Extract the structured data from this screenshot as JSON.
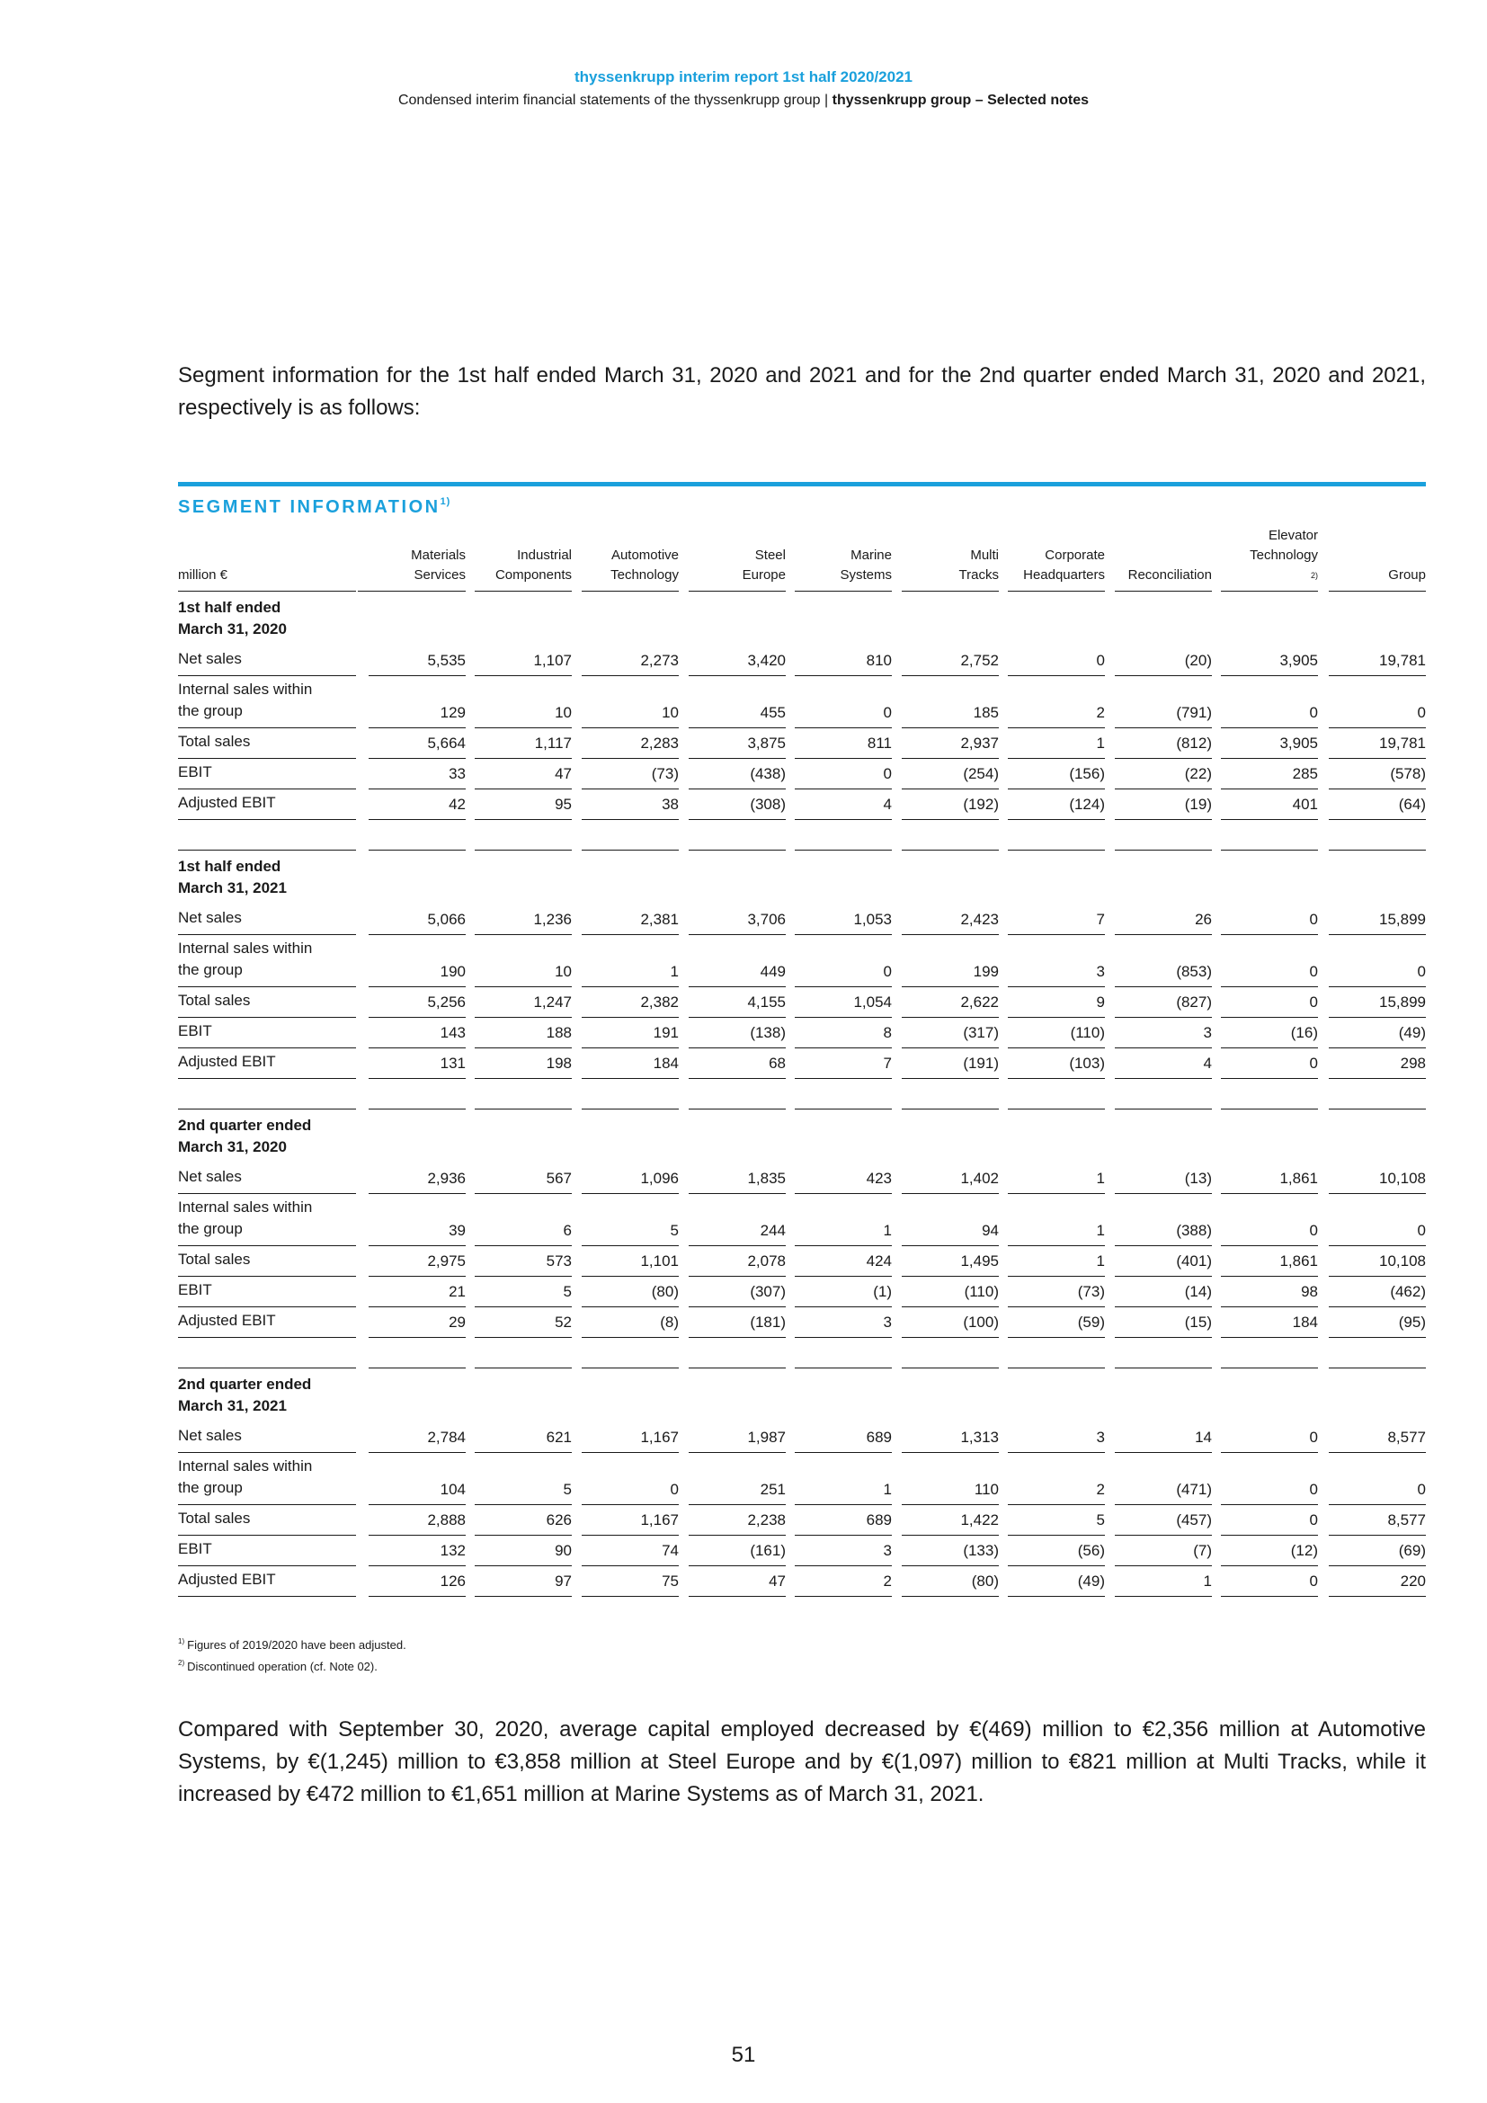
{
  "header": {
    "title": "thyssenkrupp interim report 1st half 2020/2021",
    "subtitle_plain": "Condensed interim financial statements of the thyssenkrupp group | ",
    "subtitle_bold": "thyssenkrupp group – Selected notes"
  },
  "intro_text": "Segment information for the 1st half ended March 31, 2020 and 2021 and for the 2nd quarter ended March 31, 2020 and 2021, respectively is as follows:",
  "table_title": "SEGMENT INFORMATION",
  "table_title_sup": "1)",
  "unit_label": "million €",
  "columns": [
    {
      "line1": "Materials",
      "line2": "Services",
      "sup": ""
    },
    {
      "line1": "Industrial",
      "line2": "Components",
      "sup": ""
    },
    {
      "line1": "Automotive",
      "line2": "Technology",
      "sup": ""
    },
    {
      "line1": "Steel",
      "line2": "Europe",
      "sup": ""
    },
    {
      "line1": "Marine",
      "line2": "Systems",
      "sup": ""
    },
    {
      "line1": "Multi",
      "line2": "Tracks",
      "sup": ""
    },
    {
      "line1": "Corporate",
      "line2": "Headquarters",
      "sup": ""
    },
    {
      "line1": "",
      "line2": "Reconciliation",
      "sup": ""
    },
    {
      "line1": "Elevator",
      "line2": "Technology",
      "sup": "2)"
    },
    {
      "line1": "",
      "line2": "Group",
      "sup": ""
    }
  ],
  "sections": [
    {
      "title_line1": "1st half ended",
      "title_line2": "March 31, 2020",
      "rows": [
        {
          "label1": "Net sales",
          "label2": "",
          "values": [
            "5,535",
            "1,107",
            "2,273",
            "3,420",
            "810",
            "2,752",
            "0",
            "(20)",
            "3,905",
            "19,781"
          ]
        },
        {
          "label1": "Internal sales within",
          "label2": "the group",
          "values": [
            "129",
            "10",
            "10",
            "455",
            "0",
            "185",
            "2",
            "(791)",
            "0",
            "0"
          ]
        },
        {
          "label1": "Total sales",
          "label2": "",
          "values": [
            "5,664",
            "1,117",
            "2,283",
            "3,875",
            "811",
            "2,937",
            "1",
            "(812)",
            "3,905",
            "19,781"
          ]
        },
        {
          "label1": "EBIT",
          "label2": "",
          "values": [
            "33",
            "47",
            "(73)",
            "(438)",
            "0",
            "(254)",
            "(156)",
            "(22)",
            "285",
            "(578)"
          ]
        },
        {
          "label1": "Adjusted EBIT",
          "label2": "",
          "values": [
            "42",
            "95",
            "38",
            "(308)",
            "4",
            "(192)",
            "(124)",
            "(19)",
            "401",
            "(64)"
          ]
        }
      ]
    },
    {
      "title_line1": "1st half ended",
      "title_line2": "March 31, 2021",
      "rows": [
        {
          "label1": "Net sales",
          "label2": "",
          "values": [
            "5,066",
            "1,236",
            "2,381",
            "3,706",
            "1,053",
            "2,423",
            "7",
            "26",
            "0",
            "15,899"
          ]
        },
        {
          "label1": "Internal sales within",
          "label2": "the group",
          "values": [
            "190",
            "10",
            "1",
            "449",
            "0",
            "199",
            "3",
            "(853)",
            "0",
            "0"
          ]
        },
        {
          "label1": "Total sales",
          "label2": "",
          "values": [
            "5,256",
            "1,247",
            "2,382",
            "4,155",
            "1,054",
            "2,622",
            "9",
            "(827)",
            "0",
            "15,899"
          ]
        },
        {
          "label1": "EBIT",
          "label2": "",
          "values": [
            "143",
            "188",
            "191",
            "(138)",
            "8",
            "(317)",
            "(110)",
            "3",
            "(16)",
            "(49)"
          ]
        },
        {
          "label1": "Adjusted EBIT",
          "label2": "",
          "values": [
            "131",
            "198",
            "184",
            "68",
            "7",
            "(191)",
            "(103)",
            "4",
            "0",
            "298"
          ]
        }
      ]
    },
    {
      "title_line1": "2nd quarter ended",
      "title_line2": "March 31, 2020",
      "rows": [
        {
          "label1": "Net sales",
          "label2": "",
          "values": [
            "2,936",
            "567",
            "1,096",
            "1,835",
            "423",
            "1,402",
            "1",
            "(13)",
            "1,861",
            "10,108"
          ]
        },
        {
          "label1": "Internal sales within",
          "label2": "the group",
          "values": [
            "39",
            "6",
            "5",
            "244",
            "1",
            "94",
            "1",
            "(388)",
            "0",
            "0"
          ]
        },
        {
          "label1": "Total sales",
          "label2": "",
          "values": [
            "2,975",
            "573",
            "1,101",
            "2,078",
            "424",
            "1,495",
            "1",
            "(401)",
            "1,861",
            "10,108"
          ]
        },
        {
          "label1": "EBIT",
          "label2": "",
          "values": [
            "21",
            "5",
            "(80)",
            "(307)",
            "(1)",
            "(110)",
            "(73)",
            "(14)",
            "98",
            "(462)"
          ]
        },
        {
          "label1": "Adjusted EBIT",
          "label2": "",
          "values": [
            "29",
            "52",
            "(8)",
            "(181)",
            "3",
            "(100)",
            "(59)",
            "(15)",
            "184",
            "(95)"
          ]
        }
      ]
    },
    {
      "title_line1": "2nd quarter ended",
      "title_line2": "March 31, 2021",
      "rows": [
        {
          "label1": "Net sales",
          "label2": "",
          "values": [
            "2,784",
            "621",
            "1,167",
            "1,987",
            "689",
            "1,313",
            "3",
            "14",
            "0",
            "8,577"
          ]
        },
        {
          "label1": "Internal sales within",
          "label2": "the group",
          "values": [
            "104",
            "5",
            "0",
            "251",
            "1",
            "110",
            "2",
            "(471)",
            "0",
            "0"
          ]
        },
        {
          "label1": "Total sales",
          "label2": "",
          "values": [
            "2,888",
            "626",
            "1,167",
            "2,238",
            "689",
            "1,422",
            "5",
            "(457)",
            "0",
            "8,577"
          ]
        },
        {
          "label1": "EBIT",
          "label2": "",
          "values": [
            "132",
            "90",
            "74",
            "(161)",
            "3",
            "(133)",
            "(56)",
            "(7)",
            "(12)",
            "(69)"
          ]
        },
        {
          "label1": "Adjusted EBIT",
          "label2": "",
          "values": [
            "126",
            "97",
            "75",
            "47",
            "2",
            "(80)",
            "(49)",
            "1",
            "0",
            "220"
          ]
        }
      ]
    }
  ],
  "footnotes": [
    {
      "mark": "1)",
      "text": "Figures of 2019/2020 have been adjusted."
    },
    {
      "mark": "2)",
      "text": "Discontinued operation (cf. Note 02)."
    }
  ],
  "closing_text": "Compared with September 30, 2020, average capital employed decreased by €(469) million to €2,356 million at Automotive Systems, by €(1,245) million to €3,858 million at Steel Europe and by €(1,097) million to €821 million at Multi Tracks, while it increased by €472 million to €1,651 million at Marine Systems as of March 31, 2021.",
  "page_number": "51",
  "colors": {
    "accent": "#1aa0dc",
    "text": "#1a1a1a"
  }
}
